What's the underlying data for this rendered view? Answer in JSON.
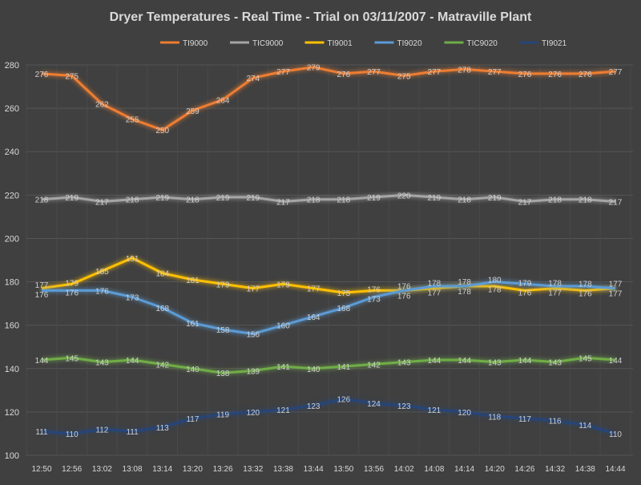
{
  "chart_data": {
    "type": "line",
    "title": "Dryer Temperatures - Real Time - Trial on 03/11/2007 - Matraville Plant",
    "xlabel": "",
    "ylabel": "",
    "ylim": [
      100,
      280
    ],
    "yticks": [
      100,
      120,
      140,
      160,
      180,
      200,
      220,
      240,
      260,
      280
    ],
    "grid": true,
    "legend_position": "top",
    "categories": [
      "12:50",
      "12:56",
      "13:02",
      "13:08",
      "13:14",
      "13:20",
      "13:26",
      "13:32",
      "13:38",
      "13:44",
      "13:50",
      "13:56",
      "14:02",
      "14:08",
      "14:14",
      "14:20",
      "14:26",
      "14:32",
      "14:38",
      "14:44"
    ],
    "series": [
      {
        "name": "TI9000",
        "color": "#ED7D31",
        "values": [
          276,
          275,
          262,
          255,
          250,
          259,
          264,
          274,
          277,
          279,
          276,
          277,
          275,
          277,
          278,
          277,
          276,
          276,
          276,
          277
        ]
      },
      {
        "name": "TIC9000",
        "color": "#A5A5A5",
        "values": [
          218,
          219,
          217,
          218,
          219,
          218,
          219,
          219,
          217,
          218,
          218,
          219,
          220,
          219,
          218,
          219,
          217,
          218,
          218,
          217
        ]
      },
      {
        "name": "TI9001",
        "color": "#FFC000",
        "values": [
          177,
          179,
          185,
          191,
          184,
          181,
          179,
          177,
          179,
          177,
          175,
          176,
          176,
          177,
          178,
          178,
          176,
          177,
          176,
          177
        ]
      },
      {
        "name": "TI9020",
        "color": "#5B9BD5",
        "values": [
          176,
          176,
          176,
          173,
          168,
          161,
          158,
          156,
          160,
          164,
          168,
          173,
          176,
          178,
          178,
          180,
          179,
          178,
          178,
          177
        ]
      },
      {
        "name": "TIC9020",
        "color": "#70AD47",
        "values": [
          144,
          145,
          143,
          144,
          142,
          140,
          138,
          139,
          141,
          140,
          141,
          142,
          143,
          144,
          144,
          143,
          144,
          143,
          145,
          144
        ]
      },
      {
        "name": "TI9021",
        "color": "#264478",
        "values": [
          111,
          110,
          112,
          111,
          113,
          117,
          119,
          120,
          121,
          123,
          126,
          124,
          123,
          121,
          120,
          118,
          117,
          116,
          114,
          110
        ]
      }
    ]
  }
}
